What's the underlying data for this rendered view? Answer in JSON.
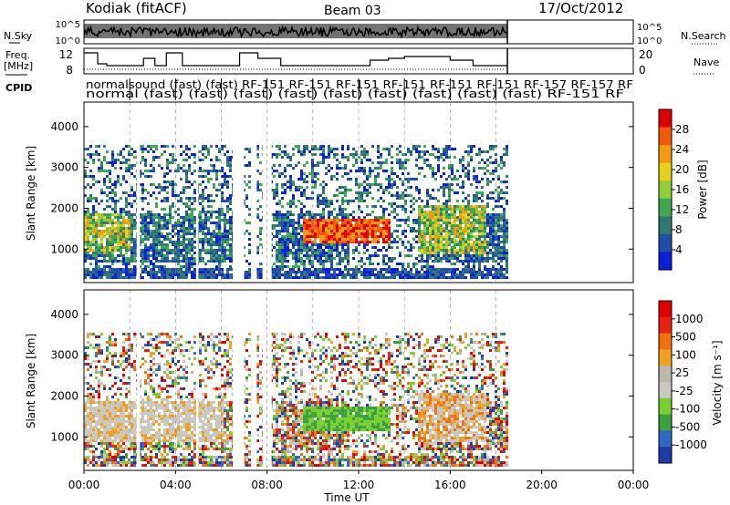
{
  "header": {
    "station": "Kodiak (fitACF)",
    "beam": "Beam 03",
    "date": "17/Oct/2012"
  },
  "labels": {
    "nsky": "N.Sky",
    "nsearch": "N.Search",
    "freq_line1": "Freq.",
    "freq_line2": "[MHz]",
    "nave": "Nave",
    "cpid": "CPID"
  },
  "cpid_row1": "normalsound (fast) (fast) RF-151 RF-151 RF-151 RF-151 RF-151 RF-151 RF-157 RF-157 RF",
  "cpid_row2": "normal (fast) (fast) (fast) (fast) (fast) (fast) (fast) (fast) (fast)  RF-151  RF",
  "colors": {
    "power_scale": [
      "#0a1fd8",
      "#1f4fa8",
      "#2f7a6f",
      "#3fa84f",
      "#8fd03a",
      "#e8d020",
      "#f39a10",
      "#f25a0a",
      "#e00000"
    ],
    "velocity_scale": [
      "#1f3aa8",
      "#3067c0",
      "#3aa040",
      "#7ad030",
      "#c8c8c0",
      "#b8b8b0",
      "#f0a020",
      "#f07010",
      "#e82010",
      "#e00000"
    ]
  },
  "chart_data": [
    {
      "type": "line",
      "panel": "noise",
      "y_left_ticks": [
        "10^5",
        "10^0"
      ],
      "y_right_ticks": [
        "10^5",
        "10^0"
      ],
      "data_end_hour": 18.5
    },
    {
      "type": "line",
      "panel": "frequency",
      "y_left_ticks": [
        "12",
        "8"
      ],
      "y_right_ticks": [
        "20",
        "0"
      ],
      "data_end_hour": 18.5
    },
    {
      "type": "heatmap",
      "panel": "power",
      "ylabel": "Slant Range [km]",
      "y_ticks": [
        1000,
        2000,
        3000,
        4000
      ],
      "ylim": [
        180,
        4600
      ],
      "x_range_hours": [
        0,
        24
      ],
      "data_end_hour": 18.5,
      "colorbar_label": "Power [dB]",
      "colorbar_ticks": [
        "28",
        "24",
        "20",
        "16",
        "12",
        "8",
        "4"
      ]
    },
    {
      "type": "heatmap",
      "panel": "velocity",
      "ylabel": "Slant Range [km]",
      "y_ticks": [
        1000,
        2000,
        3000,
        4000
      ],
      "ylim": [
        180,
        4600
      ],
      "x_range_hours": [
        0,
        24
      ],
      "data_end_hour": 18.5,
      "colorbar_label": "Velocity [m s⁻¹]",
      "colorbar_ticks": [
        "1000",
        "500",
        "100",
        "25",
        "-25",
        "-100",
        "-500",
        "-1000"
      ]
    }
  ],
  "x_axis": {
    "label": "Time UT",
    "ticks": [
      "00:00",
      "04:00",
      "08:00",
      "12:00",
      "16:00",
      "20:00",
      "00:00"
    ]
  }
}
